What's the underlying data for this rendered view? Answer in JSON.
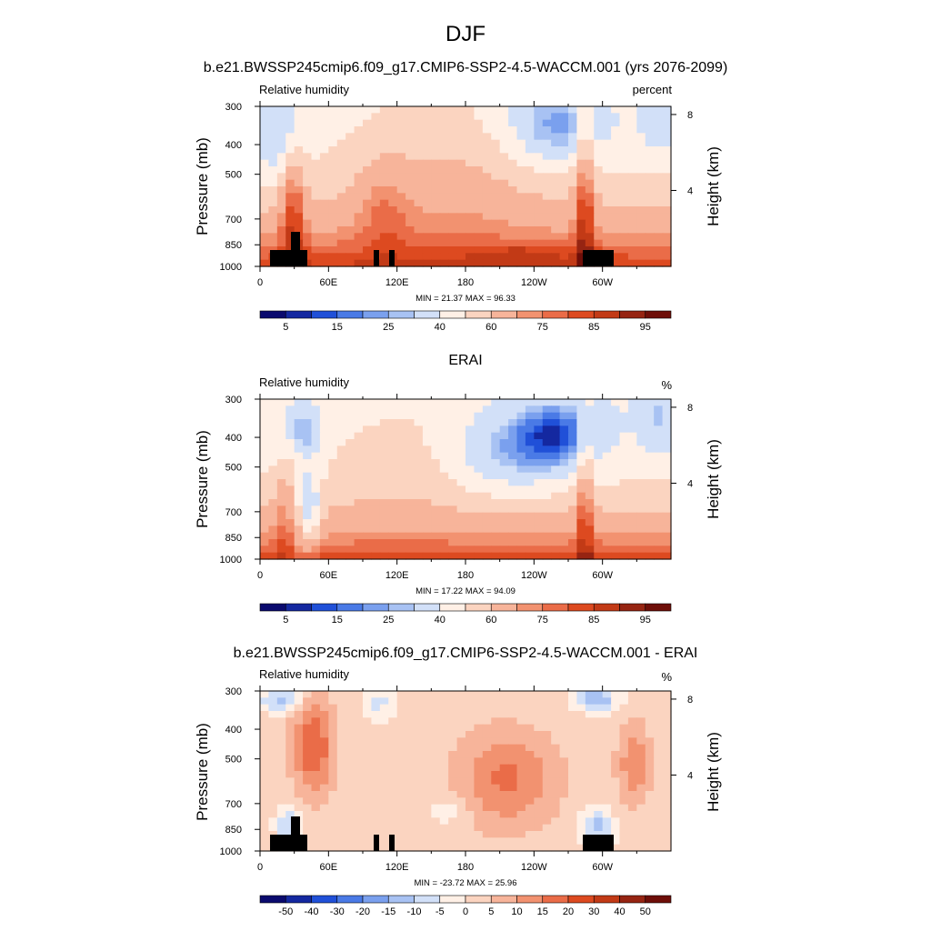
{
  "page": {
    "title": "DJF"
  },
  "colors": {
    "abs": [
      "#0a0a6e",
      "#1428a0",
      "#2050d8",
      "#4a7ae6",
      "#7aa0ee",
      "#a8c2f3",
      "#d2e0f8",
      "#fff0e6",
      "#fbd4c0",
      "#f7b49a",
      "#f29270",
      "#ea6c48",
      "#dd4a20",
      "#c23a16",
      "#962412",
      "#6e0e08"
    ],
    "diff": [
      "#0a0a6e",
      "#1428a0",
      "#2050d8",
      "#4a7ae6",
      "#7aa0ee",
      "#a8c2f3",
      "#d2e0f8",
      "#fff0e6",
      "#fbd4c0",
      "#f7b49a",
      "#f29270",
      "#ea6c48",
      "#dd4a20",
      "#c23a16",
      "#962412",
      "#6e0e08"
    ]
  },
  "panels": [
    {
      "title": "b.e21.BWSSP245cmip6.f09_g17.CMIP6-SSP2-4.5-WACCM.001 (yrs 2076-2099)",
      "left_label": "Relative humidity",
      "right_label": "percent",
      "stats": "MIN =  21.37  MAX =  96.33",
      "ylabel": "Pressure (mb)",
      "ylabel_right": "Height (km)",
      "colorbar_labels": [
        "5",
        "15",
        "25",
        "40",
        "60",
        "75",
        "85",
        "95"
      ]
    },
    {
      "title": "ERAI",
      "left_label": "Relative humidity",
      "right_label": "%",
      "stats": "MIN =  17.22  MAX =  94.09",
      "ylabel": "Pressure (mb)",
      "ylabel_right": "Height (km)",
      "colorbar_labels": [
        "5",
        "15",
        "25",
        "40",
        "60",
        "75",
        "85",
        "95"
      ]
    },
    {
      "title": "b.e21.BWSSP245cmip6.f09_g17.CMIP6-SSP2-4.5-WACCM.001 - ERAI",
      "left_label": "Relative humidity",
      "right_label": "%",
      "stats": "MIN = -23.72  MAX =  25.96",
      "ylabel": "Pressure (mb)",
      "ylabel_right": "Height (km)",
      "colorbar_labels": [
        "-50",
        "-40",
        "-30",
        "-20",
        "-15",
        "-10",
        "-5",
        "0",
        "5",
        "10",
        "15",
        "20",
        "30",
        "40",
        "50"
      ]
    }
  ],
  "chart_data": [
    {
      "type": "heatmap",
      "title": "b.e21.BWSSP245cmip6.f09_g17.CMIP6-SSP2-4.5-WACCM.001 (yrs 2076-2099)",
      "variable": "Relative humidity",
      "units": "percent",
      "xlabel": "",
      "ylabel": "Pressure (mb)",
      "ylabel_right": "Height (km)",
      "x_ticks": [
        "0",
        "60E",
        "120E",
        "180",
        "120W",
        "60W"
      ],
      "y_ticks": [
        "300",
        "400",
        "500",
        "700",
        "850",
        "1000"
      ],
      "y_right_ticks": [
        "4",
        "8"
      ],
      "xlim": [
        0,
        360
      ],
      "ylim": [
        1000,
        300
      ],
      "y_scale": "log",
      "levels": [
        5,
        10,
        15,
        20,
        25,
        30,
        40,
        50,
        60,
        70,
        75,
        80,
        85,
        90,
        95
      ],
      "colorbar_labels": [
        "5",
        "15",
        "25",
        "40",
        "60",
        "75",
        "85",
        "95"
      ],
      "min": 21.37,
      "max": 96.33
    },
    {
      "type": "heatmap",
      "title": "ERAI",
      "variable": "Relative humidity",
      "units": "%",
      "xlabel": "",
      "ylabel": "Pressure (mb)",
      "ylabel_right": "Height (km)",
      "x_ticks": [
        "0",
        "60E",
        "120E",
        "180",
        "120W",
        "60W"
      ],
      "y_ticks": [
        "300",
        "400",
        "500",
        "700",
        "850",
        "1000"
      ],
      "y_right_ticks": [
        "4",
        "8"
      ],
      "xlim": [
        0,
        360
      ],
      "ylim": [
        1000,
        300
      ],
      "y_scale": "log",
      "levels": [
        5,
        10,
        15,
        20,
        25,
        30,
        40,
        50,
        60,
        70,
        75,
        80,
        85,
        90,
        95
      ],
      "colorbar_labels": [
        "5",
        "15",
        "25",
        "40",
        "60",
        "75",
        "85",
        "95"
      ],
      "min": 17.22,
      "max": 94.09
    },
    {
      "type": "heatmap",
      "title": "b.e21.BWSSP245cmip6.f09_g17.CMIP6-SSP2-4.5-WACCM.001 - ERAI",
      "variable": "Relative humidity",
      "units": "%",
      "xlabel": "",
      "ylabel": "Pressure (mb)",
      "ylabel_right": "Height (km)",
      "x_ticks": [
        "0",
        "60E",
        "120E",
        "180",
        "120W",
        "60W"
      ],
      "y_ticks": [
        "300",
        "400",
        "500",
        "700",
        "850",
        "1000"
      ],
      "y_right_ticks": [
        "4",
        "8"
      ],
      "xlim": [
        0,
        360
      ],
      "ylim": [
        1000,
        300
      ],
      "y_scale": "log",
      "levels": [
        -50,
        -40,
        -30,
        -20,
        -15,
        -10,
        -5,
        0,
        5,
        10,
        15,
        20,
        30,
        40,
        50
      ],
      "colorbar_labels": [
        "-50",
        "-40",
        "-30",
        "-20",
        "-15",
        "-10",
        "-5",
        "0",
        "5",
        "10",
        "15",
        "20",
        "30",
        "40",
        "50"
      ],
      "min": -23.72,
      "max": 25.96
    }
  ]
}
